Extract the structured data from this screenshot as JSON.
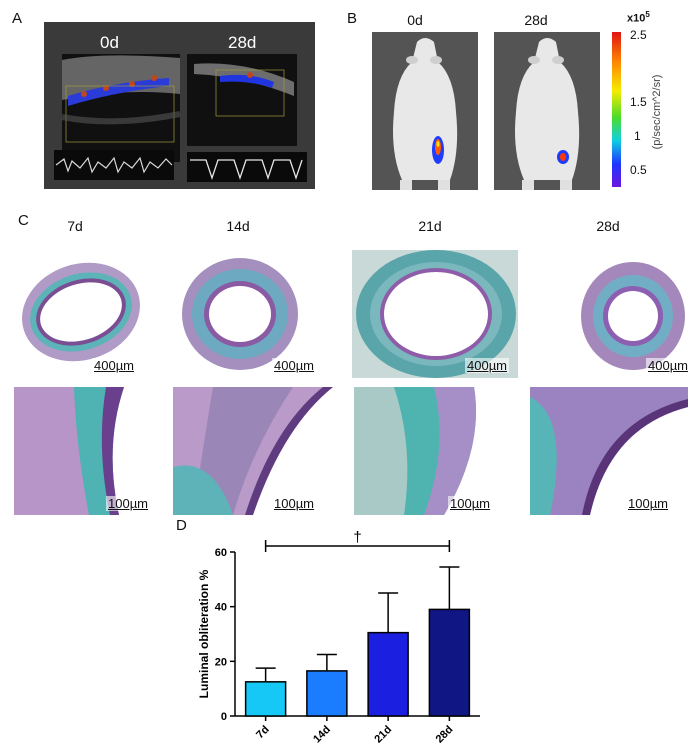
{
  "panels": {
    "a": "A",
    "b": "B",
    "c": "C",
    "d": "D"
  },
  "panel_a": {
    "label_0d": "0d",
    "label_28d": "28d"
  },
  "panel_b": {
    "label_0d": "0d",
    "label_28d": "28d",
    "colorbar": {
      "multiplier": "x10",
      "exponent": "5",
      "ticks": [
        "2.5",
        "1.5",
        "1",
        "0.5"
      ],
      "unit": "(p/sec/cm^2/sr)"
    }
  },
  "panel_c": {
    "timepoints": [
      "7d",
      "14d",
      "21d",
      "28d"
    ],
    "scale_low_mag": "400µm",
    "scale_high_mag": "100µm"
  },
  "chart_data": {
    "type": "bar",
    "categories": [
      "7d",
      "14d",
      "21d",
      "28d"
    ],
    "values": [
      12.5,
      16.5,
      30.5,
      39
    ],
    "errors": [
      5,
      6,
      14.5,
      15.5
    ],
    "colors": [
      "#16c8f5",
      "#1a7dff",
      "#1a1fe0",
      "#101683"
    ],
    "ylabel": "Luminal obliteration %",
    "ylim": [
      0,
      60
    ],
    "yticks": [
      0,
      20,
      40,
      60
    ],
    "significance": {
      "from": "7d",
      "to": "28d",
      "symbol": "†"
    }
  }
}
